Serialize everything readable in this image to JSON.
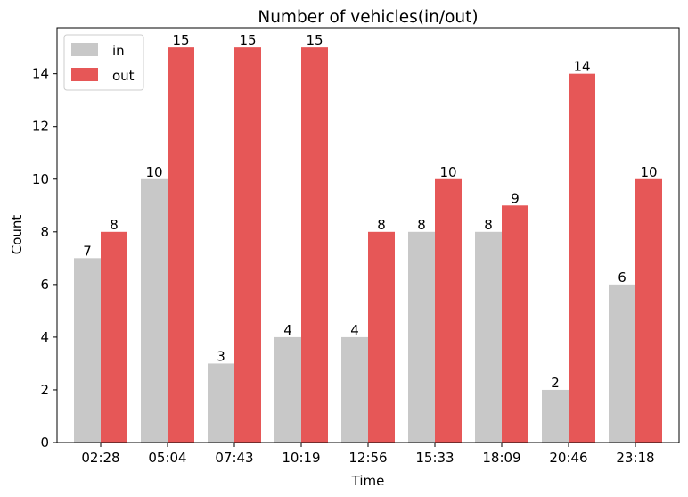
{
  "chart_data": {
    "type": "bar",
    "title": "Number of vehicles(in/out)",
    "xlabel": "Time",
    "ylabel": "Count",
    "categories": [
      "02:28",
      "05:04",
      "07:43",
      "10:19",
      "12:56",
      "15:33",
      "18:09",
      "20:46",
      "23:18"
    ],
    "series": [
      {
        "name": "in",
        "color": "#c8c8c8",
        "values": [
          7,
          10,
          3,
          4,
          4,
          8,
          8,
          2,
          6
        ]
      },
      {
        "name": "out",
        "color": "#e65757",
        "values": [
          8,
          15,
          15,
          15,
          8,
          10,
          9,
          14,
          10
        ]
      }
    ],
    "ylim": [
      0,
      15.75
    ],
    "yticks": [
      "0",
      "2",
      "4",
      "6",
      "8",
      "10",
      "12",
      "14"
    ],
    "grid": false,
    "legend": "top-left",
    "data_labels": true
  }
}
